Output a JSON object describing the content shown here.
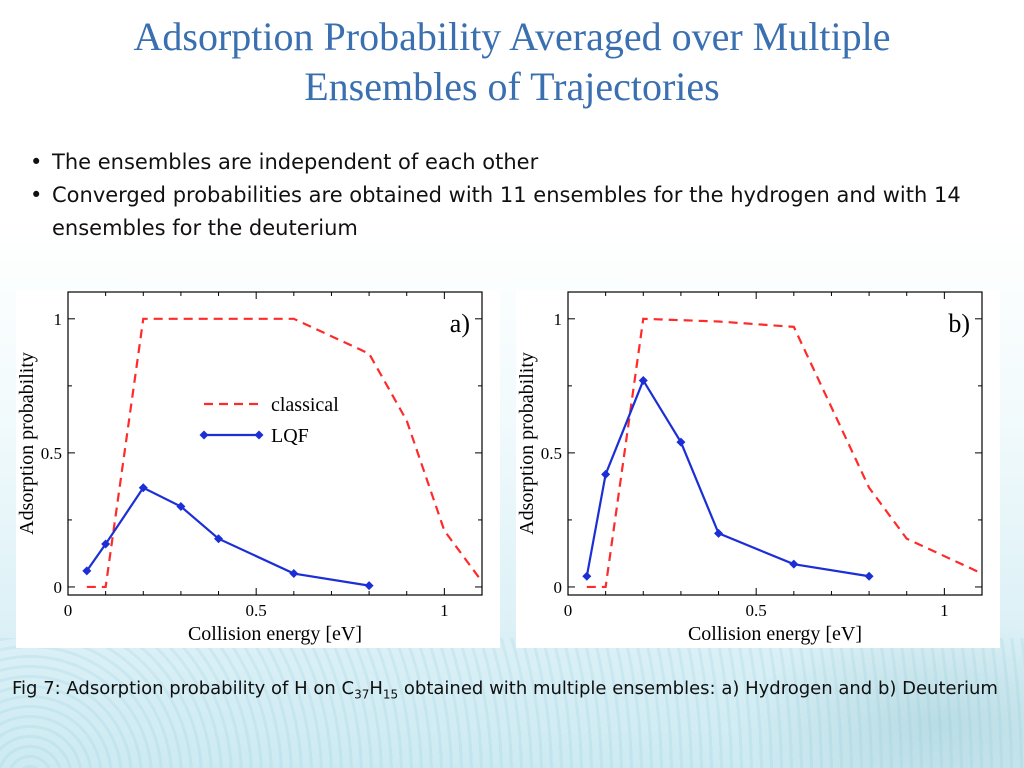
{
  "slide": {
    "title_line1": "Adsorption Probability Averaged over Multiple",
    "title_line2": "Ensembles of Trajectories",
    "bullets": [
      "The ensembles are independent of each other",
      "Converged probabilities are obtained with 11 ensembles for the hydrogen and with 14 ensembles for the deuterium"
    ],
    "caption": {
      "prefix": "Fig 7: Adsorption probability of H on C",
      "sub1": "37",
      "mid": "H",
      "sub2": "15",
      "suffix": " obtained with multiple ensembles: a) Hydrogen and b) Deuterium"
    }
  },
  "colors": {
    "title": "#3a6fb0",
    "classical": "#ff2a2a",
    "lqf": "#1c2fd6"
  },
  "chart_data": [
    {
      "type": "line",
      "panel_label": "a)",
      "xlabel": "Collision energy [eV]",
      "ylabel": "Adsorption probability",
      "xlim": [
        0,
        1.1
      ],
      "ylim": [
        -0.03,
        1.1
      ],
      "xticks": [
        0,
        0.5,
        1
      ],
      "xtick_labels": [
        "0",
        "0.5",
        "1"
      ],
      "yticks": [
        0,
        0.5,
        1
      ],
      "ytick_labels": [
        "0",
        "0.5",
        "1"
      ],
      "legend": {
        "position": "center",
        "entries": [
          "classical",
          "LQF"
        ]
      },
      "series": [
        {
          "name": "classical",
          "style": "dashed",
          "x": [
            0.05,
            0.1,
            0.2,
            0.6,
            0.8,
            0.9,
            1.0,
            1.1
          ],
          "y": [
            0,
            0,
            1.0,
            1.0,
            0.87,
            0.62,
            0.21,
            0.02
          ]
        },
        {
          "name": "LQF",
          "style": "solid-diamond",
          "x": [
            0.05,
            0.1,
            0.2,
            0.3,
            0.4,
            0.6,
            0.8
          ],
          "y": [
            0.06,
            0.16,
            0.37,
            0.3,
            0.18,
            0.05,
            0.005
          ]
        }
      ]
    },
    {
      "type": "line",
      "panel_label": "b)",
      "xlabel": "Collision energy [eV]",
      "ylabel": "Adsorption probability",
      "xlim": [
        0,
        1.1
      ],
      "ylim": [
        -0.03,
        1.1
      ],
      "xticks": [
        0,
        0.5,
        1
      ],
      "xtick_labels": [
        "0",
        "0.5",
        "1"
      ],
      "yticks": [
        0,
        0.5,
        1
      ],
      "ytick_labels": [
        "0",
        "0.5",
        "1"
      ],
      "series": [
        {
          "name": "classical",
          "style": "dashed",
          "x": [
            0.05,
            0.1,
            0.2,
            0.4,
            0.6,
            0.8,
            0.9,
            1.1
          ],
          "y": [
            0,
            0,
            1.0,
            0.99,
            0.97,
            0.37,
            0.18,
            0.05
          ]
        },
        {
          "name": "LQF",
          "style": "solid-diamond",
          "x": [
            0.05,
            0.1,
            0.2,
            0.3,
            0.4,
            0.6,
            0.8
          ],
          "y": [
            0.04,
            0.42,
            0.77,
            0.54,
            0.2,
            0.085,
            0.04
          ]
        }
      ]
    }
  ]
}
